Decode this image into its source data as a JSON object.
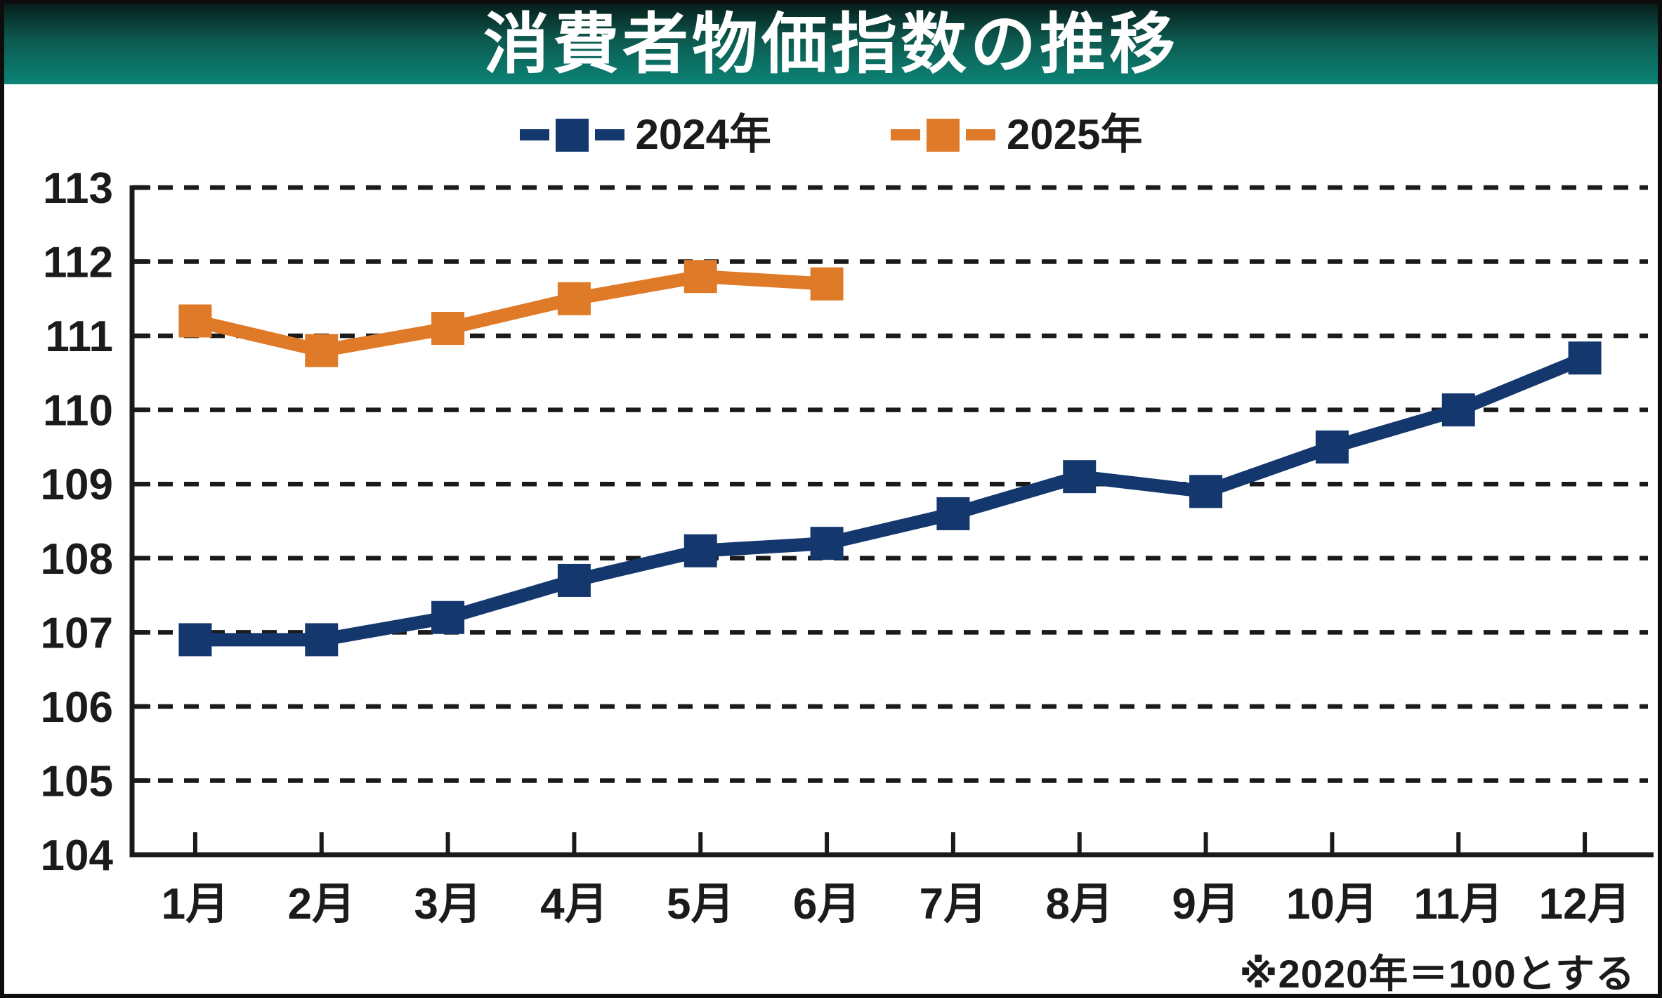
{
  "header": {
    "title": "消費者物価指数の推移"
  },
  "legend": {
    "items": [
      {
        "label": "2024年",
        "color": "#14386e"
      },
      {
        "label": "2025年",
        "color": "#df7a28"
      }
    ]
  },
  "footnote": "※2020年＝100とする",
  "colors": {
    "banner_top": "#071f1c",
    "banner_bottom": "#0b8476",
    "grid": "#1a1a1a",
    "axis": "#1a1a1a",
    "text": "#1b1b1b",
    "series_2024": "#14386e",
    "series_2025": "#df7a28"
  },
  "chart_data": {
    "type": "line",
    "title": "消費者物価指数の推移",
    "categories": [
      "1月",
      "2月",
      "3月",
      "4月",
      "5月",
      "6月",
      "7月",
      "8月",
      "9月",
      "10月",
      "11月",
      "12月"
    ],
    "series": [
      {
        "name": "2024年",
        "color": "#14386e",
        "values": [
          106.9,
          106.9,
          107.2,
          107.7,
          108.1,
          108.2,
          108.6,
          109.1,
          108.9,
          109.5,
          110.0,
          110.7
        ]
      },
      {
        "name": "2025年",
        "color": "#df7a28",
        "values": [
          111.2,
          110.8,
          111.1,
          111.5,
          111.8,
          111.7,
          null,
          null,
          null,
          null,
          null,
          null
        ]
      }
    ],
    "xlabel": "",
    "ylabel": "",
    "ylim": [
      104,
      113
    ],
    "yticks": [
      104,
      105,
      106,
      107,
      108,
      109,
      110,
      111,
      112,
      113
    ],
    "grid": "horizontal-dashed",
    "legend_position": "top",
    "marker_shape": "square",
    "note": "※2020年＝100とする"
  }
}
